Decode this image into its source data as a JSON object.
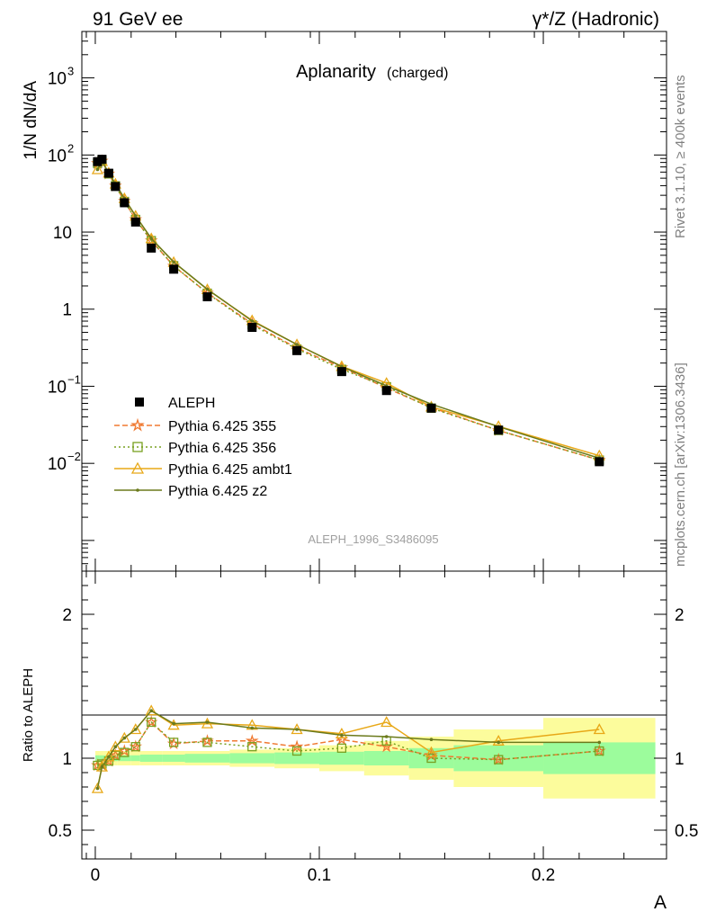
{
  "header": {
    "left": "91 GeV ee",
    "right": "γ*/Z (Hadronic)"
  },
  "side_text": {
    "rivet": "Rivet 3.1.10, ≥ 400k events",
    "mcplots": "mcplots.cern.ch [arXiv:1306.3436]"
  },
  "chart_data": {
    "type": "line",
    "title": "Aplanarity",
    "title_suffix": "(charged)",
    "watermark": "ALEPH_1996_S3486095",
    "xlabel": "A",
    "ylabel": "1/N dN/dA",
    "ratio_ylabel": "Ratio to ALEPH",
    "xlim": [
      -0.006,
      0.255
    ],
    "ylim": [
      0.0004,
      4000
    ],
    "yscale": "log",
    "ratio_ylim": [
      0.3,
      2.3
    ],
    "x_ticks": [
      0,
      0.1,
      0.2
    ],
    "x_tick_labels": [
      "0",
      "0.1",
      "0.2"
    ],
    "y_ticks": [
      1000,
      100,
      10,
      1,
      0.1,
      0.01
    ],
    "y_tick_labels": [
      {
        "base": "10",
        "exp": "3"
      },
      {
        "base": "10",
        "exp": "2"
      },
      {
        "base": "10",
        "exp": ""
      },
      {
        "base": "1",
        "exp": ""
      },
      {
        "base": "10",
        "exp": "−1"
      },
      {
        "base": "10",
        "exp": "−2"
      }
    ],
    "ratio_ticks": [
      2,
      1,
      0.5
    ],
    "ratio_tick_labels": [
      "2",
      "1",
      "0.5"
    ],
    "legend_position": "bottom-left",
    "x": [
      0.001,
      0.003,
      0.006,
      0.009,
      0.013,
      0.018,
      0.025,
      0.035,
      0.05,
      0.07,
      0.09,
      0.11,
      0.13,
      0.15,
      0.18,
      0.225
    ],
    "bin_edges": [
      0.0,
      0.002,
      0.004,
      0.008,
      0.01,
      0.016,
      0.02,
      0.03,
      0.04,
      0.06,
      0.08,
      0.1,
      0.12,
      0.14,
      0.16,
      0.2,
      0.25
    ],
    "data": {
      "name": "ALEPH",
      "values": [
        82,
        88,
        58,
        39,
        24,
        13.5,
        6.2,
        3.3,
        1.45,
        0.58,
        0.29,
        0.155,
        0.088,
        0.052,
        0.027,
        0.0105
      ],
      "band_inner": [
        0.02,
        0.02,
        0.02,
        0.02,
        0.02,
        0.02,
        0.025,
        0.025,
        0.03,
        0.035,
        0.04,
        0.045,
        0.05,
        0.07,
        0.09,
        0.11
      ],
      "band_outer": [
        0.05,
        0.05,
        0.05,
        0.05,
        0.05,
        0.05,
        0.05,
        0.05,
        0.05,
        0.06,
        0.07,
        0.09,
        0.12,
        0.15,
        0.2,
        0.28
      ]
    },
    "series": [
      {
        "name": "Pythia 6.425 355",
        "color": "#f07a32",
        "dash": "6,3",
        "marker": "star",
        "ratio": [
          0.95,
          0.95,
          0.98,
          1.02,
          1.05,
          1.08,
          1.25,
          1.1,
          1.12,
          1.12,
          1.08,
          1.13,
          1.08,
          1.02,
          0.99,
          1.05
        ]
      },
      {
        "name": "Pythia 6.425 356",
        "color": "#78a020",
        "dash": "2,3",
        "marker": "square",
        "ratio": [
          0.95,
          0.96,
          0.98,
          1.02,
          1.04,
          1.08,
          1.25,
          1.11,
          1.11,
          1.08,
          1.05,
          1.07,
          1.12,
          1.0,
          0.99,
          1.05
        ]
      },
      {
        "name": "Pythia 6.425 ambt1",
        "color": "#e8a817",
        "dash": "",
        "marker": "triangle",
        "ratio": [
          0.79,
          0.94,
          1.01,
          1.08,
          1.14,
          1.2,
          1.33,
          1.23,
          1.24,
          1.23,
          1.2,
          1.17,
          1.25,
          1.04,
          1.12,
          1.2
        ]
      },
      {
        "name": "Pythia 6.425 z2",
        "color": "#6b7a1c",
        "dash": "",
        "marker": "dot",
        "ratio": [
          0.79,
          0.94,
          1.01,
          1.08,
          1.14,
          1.2,
          1.33,
          1.24,
          1.25,
          1.21,
          1.2,
          1.16,
          1.15,
          1.13,
          1.11,
          1.11
        ]
      }
    ],
    "colors": {
      "data": "#000000",
      "band_inner": "#9cfc9c",
      "band_outer": "#fcfc9c"
    }
  }
}
